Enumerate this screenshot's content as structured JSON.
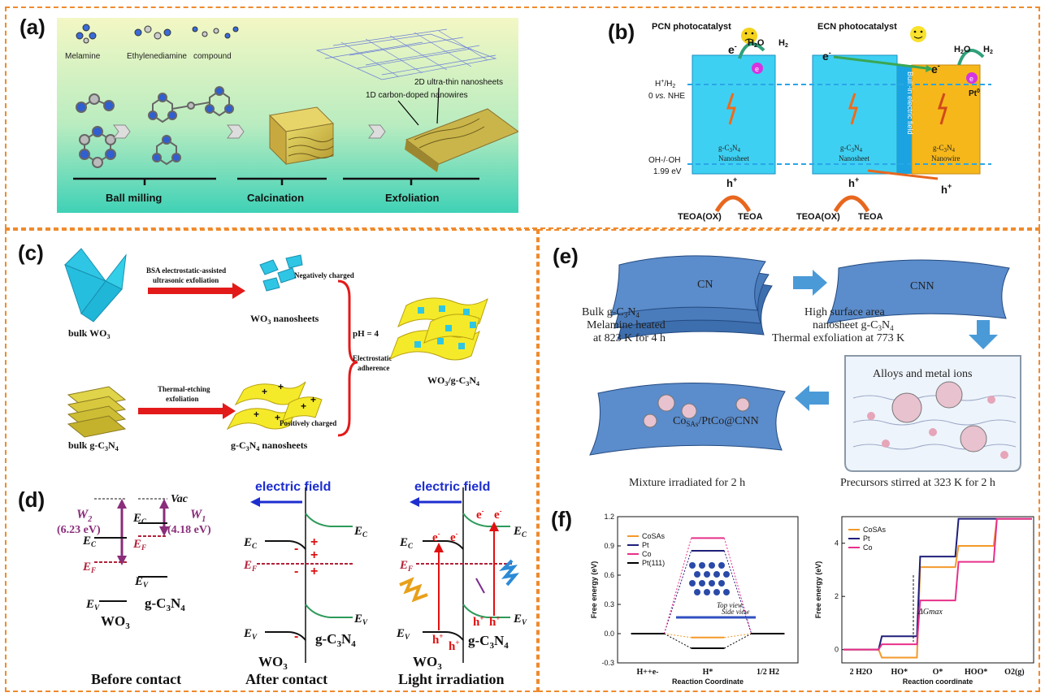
{
  "panels": {
    "a": {
      "label": "(a)",
      "molecules": [
        "Melamine",
        "Ethylenediamine",
        "compound"
      ],
      "annotations": [
        "2D ultra-thin nanosheets",
        "1D carbon-doped nanowires"
      ],
      "steps": [
        "Ball milling",
        "Calcination",
        "Exfoliation"
      ]
    },
    "b": {
      "label": "(b)",
      "pcn_title": "PCN photocatalyst",
      "ecn_title": "ECN photocatalyst",
      "h2o": "H2O",
      "h2": "H2",
      "electron": "e-",
      "hole": "h+",
      "pt0": "Pt0",
      "level1": "H+/H2",
      "level1b": "0 vs. NHE",
      "level2": "OH-/·OH",
      "level2b": "1.99 eV",
      "box_nanosheet": "g-C3N4 Nanosheet",
      "box_nanowire": "g-C3N4 Nanowire",
      "field": "Built-in electric field",
      "teoa_ox": "TEOA(OX)",
      "teoa": "TEOA"
    },
    "c": {
      "label": "(c)",
      "bulk_wo3": "bulk WO3",
      "bulk_gcn": "bulk g-C3N4",
      "route1a": "BSA electrostatic-assisted",
      "route1b": "ultrasonic exfoliation",
      "route2a": "Thermal-etching",
      "route2b": "exfoliation",
      "wo3_ns": "WO3 nanosheets",
      "gcn_ns": "g-C3N4 nanosheets",
      "neg": "Negatively charged",
      "pos": "Positively charged",
      "ph": "pH = 4",
      "adh1": "Electrostatic",
      "adh2": "adherence",
      "composite": "WO3/g-C3N4"
    },
    "d": {
      "label": "(d)",
      "vac": "Vac",
      "w2": "W2",
      "w2v": "(6.23 eV)",
      "w1": "W1",
      "w1v": "(4.18 eV)",
      "ec": "EC",
      "ef": "EF",
      "ev": "EV",
      "wo3": "WO3",
      "gcn": "g-C3N4",
      "field": "electric field",
      "captions": [
        "Before contact",
        "After contact",
        "Light irradiation"
      ]
    },
    "e": {
      "label": "(e)",
      "cn": "CN",
      "cnn": "CNN",
      "bulk1": "Bulk g-C3N4",
      "bulk2": "Melamine heated",
      "bulk3": "at 823 K for 4 h",
      "hs1": "High surface area",
      "hs2": "nanosheet g-C3N4",
      "hs3": "Thermal exfoliation at 773 K",
      "alloys": "Alloys and metal ions",
      "product": "CoSAs/PtCo@CNN",
      "mix": "Mixture irradiated for 2 h",
      "prec": "Precursors stirred at 323 K for 2 h"
    },
    "f": {
      "label": "(f)",
      "top_view": "Top view",
      "side_view": "Side view",
      "dg": "ΔGmax"
    }
  },
  "chart_data": [
    {
      "type": "line",
      "title": "",
      "xlabel": "Reaction Coordinate",
      "ylabel": "Free energy (eV)",
      "categories": [
        "H++e-",
        "H*",
        "1/2 H2"
      ],
      "ylim": [
        -0.3,
        1.2
      ],
      "yticks": [
        "-0.3",
        "0.0",
        "0.3",
        "0.6",
        "0.9",
        "1.2"
      ],
      "series": [
        {
          "name": "CoSAs",
          "color": "#f39a2a",
          "values": [
            0,
            -0.04,
            0
          ]
        },
        {
          "name": "Pt",
          "color": "#1f1f7a",
          "values": [
            0,
            0.85,
            0
          ]
        },
        {
          "name": "Co",
          "color": "#e8308a",
          "values": [
            0,
            0.98,
            0
          ]
        },
        {
          "name": "Pt(111)",
          "color": "#000000",
          "values": [
            0,
            -0.15,
            0
          ]
        }
      ]
    },
    {
      "type": "line",
      "title": "",
      "xlabel": "Reaction coordinate",
      "ylabel": "Free energy (eV)",
      "categories": [
        "2 H2O",
        "HO*",
        "O*",
        "HOO*",
        "O2(g)"
      ],
      "ylim": [
        -0.5,
        5
      ],
      "yticks": [
        "0",
        "2",
        "4"
      ],
      "series": [
        {
          "name": "CoSAs",
          "color": "#f39a2a",
          "values": [
            0,
            -0.3,
            3.1,
            3.9,
            4.92
          ]
        },
        {
          "name": "Pt",
          "color": "#1f1f7a",
          "values": [
            0,
            0.5,
            3.5,
            4.92,
            4.92
          ]
        },
        {
          "name": "Co",
          "color": "#e8308a",
          "values": [
            0,
            0.2,
            1.85,
            3.3,
            4.92
          ]
        }
      ]
    }
  ]
}
